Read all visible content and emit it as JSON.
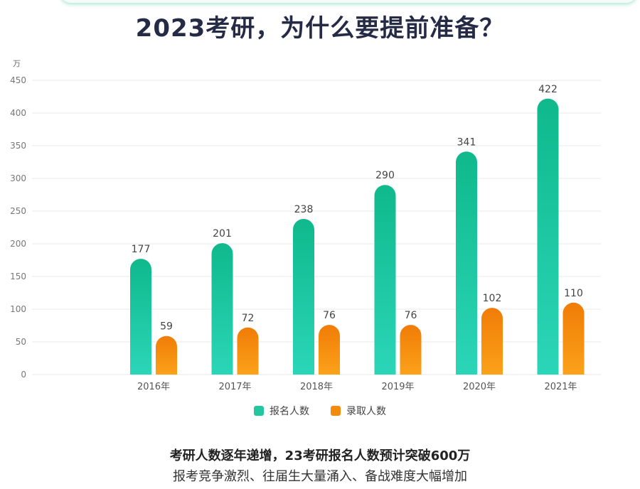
{
  "title": "2023考研，为什么要提前准备？",
  "chart_data": {
    "type": "bar",
    "title": "",
    "ylabel": "",
    "unit": "万",
    "categories": [
      "2016年",
      "2017年",
      "2018年",
      "2019年",
      "2020年",
      "2021年"
    ],
    "series": [
      {
        "name": "报名人数",
        "values": [
          177,
          201,
          238,
          290,
          341,
          422
        ],
        "color": "#22c7a0"
      },
      {
        "name": "录取人数",
        "values": [
          59,
          72,
          76,
          76,
          102,
          110
        ],
        "color": "#f28a0c"
      }
    ],
    "ylim": [
      0,
      450
    ],
    "yticks": [
      0,
      50,
      100,
      150,
      200,
      250,
      300,
      350,
      400,
      450
    ],
    "grid": true,
    "legend_position": "bottom"
  },
  "legend": {
    "item1": "报名人数",
    "item2": "录取人数"
  },
  "footer": {
    "main": "考研人数逐年递增，23考研报名人数预计突破600万",
    "sub": "报考竞争激烈、往届生大量涌入、备战难度大幅增加"
  }
}
